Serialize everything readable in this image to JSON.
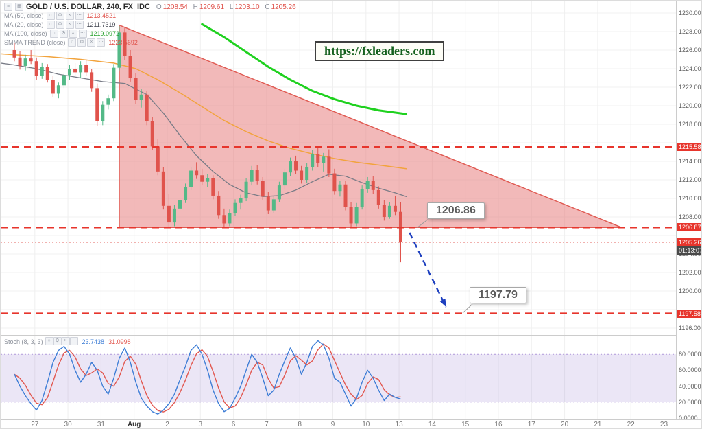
{
  "colors": {
    "up": "#53b987",
    "down": "#e0534c",
    "level_line": "#e7352c",
    "current_price_line": "#e0534c",
    "triangle_fill": "rgba(229,115,115,0.50)",
    "triangle_stroke": "#e05a52",
    "green_line": "#1fd11f",
    "orange_line": "#f2a33c",
    "gray_line": "#787b86",
    "arrow": "#1d3fbf",
    "band_fill": "rgba(103,58,183,0.13)",
    "band_edge": "#9575cd",
    "k_line": "#3d7dd6",
    "d_line": "#e2574f",
    "grid": "#f0f0f0",
    "axis_text": "#5c5c5c",
    "badge_red": "#e7352c",
    "badge_dark": "#4a4a4a"
  },
  "header": {
    "symbol_title": "GOLD / U.S. DOLLAR, 240, FX_IDC",
    "ohlc": {
      "o_label": "O",
      "o_value": "1208.54",
      "h_label": "H",
      "h_value": "1209.61",
      "l_label": "L",
      "l_value": "1203.10",
      "c_label": "C",
      "c_value": "1205.26"
    }
  },
  "legend": {
    "button_glyphs": [
      "○",
      "⚙",
      "×",
      "⋯"
    ],
    "button_names": [
      "visibility-icon",
      "settings-icon",
      "delete-icon",
      "more-icon"
    ],
    "rows": [
      {
        "label": "MA (50, close)",
        "value": "1213.4521",
        "color": "#e0534c"
      },
      {
        "label": "MA (20, close)",
        "value": "1211.7319",
        "color": "#434651"
      },
      {
        "label": "MA (100, close)",
        "value": "1219.0972",
        "color": "#27a22e"
      },
      {
        "label": "SMMA TREND (close)",
        "value": "1223.5692",
        "color": "#e0534c"
      }
    ]
  },
  "watermark": {
    "text": "https://fxleaders.com"
  },
  "callouts": [
    {
      "text": "1206.86"
    },
    {
      "text": "1197.79"
    }
  ],
  "price_axis": {
    "labels": [
      "1230.00",
      "1228.00",
      "1226.00",
      "1224.00",
      "1222.00",
      "1220.00",
      "1218.00",
      "1214.00",
      "1212.00",
      "1210.00",
      "1208.00",
      "1204.00",
      "1202.00",
      "1200.00",
      "1196.00"
    ],
    "badges": [
      {
        "text": "1215.58",
        "value": 1215.58,
        "type": "level"
      },
      {
        "text": "1206.87",
        "value": 1206.87,
        "type": "level"
      },
      {
        "text": "1205.26",
        "value": 1205.26,
        "type": "current"
      },
      {
        "text": "01:13:07",
        "value": 1204.4,
        "type": "countdown"
      },
      {
        "text": "1197.58",
        "value": 1197.58,
        "type": "level"
      }
    ],
    "stoch_labels": [
      {
        "text": "80.0000",
        "value": 80
      },
      {
        "text": "60.0000",
        "value": 60
      },
      {
        "text": "40.0000",
        "value": 40
      },
      {
        "text": "20.0000",
        "value": 20
      },
      {
        "text": "0.0000",
        "value": 0
      }
    ]
  },
  "time_axis": {
    "labels": [
      {
        "text": "27",
        "bar": 3.7
      },
      {
        "text": "30",
        "bar": 9.7
      },
      {
        "text": "31",
        "bar": 15.7
      },
      {
        "text": "Aug",
        "bar": 21.7,
        "bold": true
      },
      {
        "text": "2",
        "bar": 27.7
      },
      {
        "text": "3",
        "bar": 33.7
      },
      {
        "text": "6",
        "bar": 39.7
      },
      {
        "text": "7",
        "bar": 45.7
      },
      {
        "text": "8",
        "bar": 51.7
      },
      {
        "text": "9",
        "bar": 57.7
      },
      {
        "text": "10",
        "bar": 63.7
      },
      {
        "text": "13",
        "bar": 69.7
      },
      {
        "text": "14",
        "bar": 75.7
      },
      {
        "text": "15",
        "bar": 81.7
      },
      {
        "text": "16",
        "bar": 87.7
      },
      {
        "text": "17",
        "bar": 93.7
      },
      {
        "text": "20",
        "bar": 99.7
      },
      {
        "text": "21",
        "bar": 105.7
      },
      {
        "text": "22",
        "bar": 111.7
      },
      {
        "text": "23",
        "bar": 117.7
      }
    ]
  },
  "stoch": {
    "label": "Stoch (8, 3, 3)",
    "k_value": "23.7438",
    "d_value": "31.0998"
  },
  "chart_data": [
    {
      "type": "candlestick",
      "title": "GOLD / U.S. DOLLAR, 240, FX_IDC",
      "ylim": [
        1196.2,
        1230.8
      ],
      "levels": [
        1215.58,
        1206.87,
        1197.58
      ],
      "current_price": 1205.26,
      "ohlc_current": {
        "open": 1208.54,
        "high": 1209.61,
        "low": 1203.1,
        "close": 1205.26
      },
      "candles": [
        [
          1226.0,
          1226.8,
          1224.8,
          1225.2
        ],
        [
          1225.2,
          1225.9,
          1223.9,
          1224.3
        ],
        [
          1224.3,
          1225.5,
          1223.8,
          1225.1
        ],
        [
          1225.1,
          1226.0,
          1224.5,
          1224.8
        ],
        [
          1224.8,
          1225.2,
          1222.8,
          1223.2
        ],
        [
          1223.2,
          1224.6,
          1222.9,
          1224.2
        ],
        [
          1224.2,
          1224.5,
          1222.5,
          1222.8
        ],
        [
          1222.8,
          1223.2,
          1220.9,
          1221.3
        ],
        [
          1221.3,
          1222.5,
          1220.8,
          1222.2
        ],
        [
          1222.2,
          1223.6,
          1221.9,
          1223.3
        ],
        [
          1223.3,
          1224.4,
          1222.8,
          1224.0
        ],
        [
          1224.0,
          1224.6,
          1223.2,
          1223.6
        ],
        [
          1223.6,
          1224.8,
          1223.0,
          1224.4
        ],
        [
          1224.4,
          1225.0,
          1223.2,
          1223.6
        ],
        [
          1223.6,
          1224.0,
          1221.5,
          1221.9
        ],
        [
          1221.9,
          1222.4,
          1217.8,
          1218.3
        ],
        [
          1218.3,
          1220.5,
          1217.9,
          1220.1
        ],
        [
          1220.1,
          1221.2,
          1219.6,
          1220.8
        ],
        [
          1220.8,
          1224.5,
          1220.5,
          1224.1
        ],
        [
          1224.1,
          1228.6,
          1223.8,
          1227.9
        ],
        [
          1227.9,
          1228.4,
          1224.9,
          1225.4
        ],
        [
          1225.4,
          1226.0,
          1222.6,
          1223.0
        ],
        [
          1223.0,
          1223.5,
          1220.2,
          1220.6
        ],
        [
          1220.6,
          1221.8,
          1219.8,
          1221.2
        ],
        [
          1221.2,
          1221.6,
          1217.9,
          1218.3
        ],
        [
          1218.3,
          1218.8,
          1215.2,
          1215.6
        ],
        [
          1215.6,
          1216.4,
          1212.5,
          1212.9
        ],
        [
          1212.9,
          1213.4,
          1208.8,
          1209.2
        ],
        [
          1209.2,
          1210.5,
          1206.9,
          1207.4
        ],
        [
          1207.4,
          1209.3,
          1207.0,
          1208.9
        ],
        [
          1208.9,
          1210.2,
          1208.4,
          1209.8
        ],
        [
          1209.8,
          1211.6,
          1209.5,
          1211.2
        ],
        [
          1211.2,
          1213.4,
          1210.9,
          1213.0
        ],
        [
          1213.0,
          1213.9,
          1212.1,
          1212.5
        ],
        [
          1212.5,
          1213.2,
          1211.4,
          1211.8
        ],
        [
          1211.8,
          1212.6,
          1211.2,
          1212.2
        ],
        [
          1212.2,
          1212.5,
          1209.9,
          1210.3
        ],
        [
          1210.3,
          1210.8,
          1207.8,
          1208.2
        ],
        [
          1208.2,
          1208.9,
          1206.9,
          1207.3
        ],
        [
          1207.3,
          1208.8,
          1207.0,
          1208.4
        ],
        [
          1208.4,
          1209.9,
          1208.1,
          1209.5
        ],
        [
          1209.5,
          1210.4,
          1208.8,
          1210.0
        ],
        [
          1210.0,
          1212.2,
          1209.7,
          1211.8
        ],
        [
          1211.8,
          1213.5,
          1211.4,
          1213.1
        ],
        [
          1213.1,
          1213.6,
          1211.5,
          1211.9
        ],
        [
          1211.9,
          1212.3,
          1209.8,
          1210.2
        ],
        [
          1210.2,
          1210.7,
          1208.3,
          1208.7
        ],
        [
          1208.7,
          1210.3,
          1208.4,
          1209.9
        ],
        [
          1209.9,
          1211.8,
          1209.6,
          1211.4
        ],
        [
          1211.4,
          1213.2,
          1211.0,
          1212.8
        ],
        [
          1212.8,
          1214.4,
          1212.4,
          1214.0
        ],
        [
          1214.0,
          1214.6,
          1212.6,
          1213.0
        ],
        [
          1213.0,
          1213.5,
          1211.6,
          1212.0
        ],
        [
          1212.0,
          1213.8,
          1211.7,
          1213.4
        ],
        [
          1213.4,
          1215.2,
          1213.0,
          1214.8
        ],
        [
          1214.8,
          1215.5,
          1213.4,
          1213.8
        ],
        [
          1213.8,
          1214.9,
          1212.9,
          1214.5
        ],
        [
          1214.5,
          1215.3,
          1212.3,
          1212.7
        ],
        [
          1212.7,
          1213.2,
          1210.4,
          1210.8
        ],
        [
          1210.8,
          1211.9,
          1210.2,
          1211.5
        ],
        [
          1211.5,
          1211.9,
          1208.7,
          1209.1
        ],
        [
          1209.1,
          1209.6,
          1206.9,
          1207.3
        ],
        [
          1207.3,
          1209.5,
          1207.0,
          1209.1
        ],
        [
          1209.1,
          1211.4,
          1208.8,
          1211.0
        ],
        [
          1211.0,
          1212.3,
          1210.6,
          1211.9
        ],
        [
          1211.9,
          1212.4,
          1210.5,
          1210.9
        ],
        [
          1210.9,
          1211.3,
          1208.9,
          1209.3
        ],
        [
          1209.3,
          1209.8,
          1207.6,
          1208.0
        ],
        [
          1208.0,
          1209.6,
          1207.8,
          1209.2
        ],
        [
          1209.2,
          1210.3,
          1208.2,
          1208.54
        ],
        [
          1208.54,
          1209.61,
          1203.1,
          1205.26
        ]
      ],
      "overlays": {
        "green_ma": [
          [
            34,
            1228.8
          ],
          [
            38,
            1227.4
          ],
          [
            42,
            1225.8
          ],
          [
            46,
            1224.2
          ],
          [
            50,
            1222.8
          ],
          [
            54,
            1221.6
          ],
          [
            58,
            1220.7
          ],
          [
            62,
            1220.0
          ],
          [
            66,
            1219.5
          ],
          [
            71,
            1219.1
          ]
        ],
        "orange_ma": [
          [
            -2.5,
            1225.6
          ],
          [
            0,
            1225.5
          ],
          [
            6,
            1225.3
          ],
          [
            12,
            1225.0
          ],
          [
            18,
            1224.6
          ],
          [
            22,
            1224.0
          ],
          [
            26,
            1222.8
          ],
          [
            30,
            1221.4
          ],
          [
            34,
            1219.9
          ],
          [
            38,
            1218.4
          ],
          [
            42,
            1217.2
          ],
          [
            46,
            1216.2
          ],
          [
            50,
            1215.4
          ],
          [
            54,
            1214.8
          ],
          [
            58,
            1214.3
          ],
          [
            62,
            1213.9
          ],
          [
            66,
            1213.6
          ],
          [
            71,
            1213.2
          ]
        ],
        "gray_ma": [
          [
            -2.5,
            1224.6
          ],
          [
            0,
            1224.4
          ],
          [
            4,
            1224.0
          ],
          [
            8,
            1223.4
          ],
          [
            12,
            1223.0
          ],
          [
            16,
            1222.6
          ],
          [
            20,
            1222.4
          ],
          [
            24,
            1221.2
          ],
          [
            27,
            1219.2
          ],
          [
            30,
            1216.8
          ],
          [
            33,
            1214.6
          ],
          [
            36,
            1212.9
          ],
          [
            39,
            1211.5
          ],
          [
            42,
            1210.6
          ],
          [
            45,
            1210.2
          ],
          [
            48,
            1210.3
          ],
          [
            51,
            1210.9
          ],
          [
            54,
            1211.8
          ],
          [
            57,
            1212.6
          ],
          [
            60,
            1212.4
          ],
          [
            63,
            1211.7
          ],
          [
            66,
            1211.1
          ],
          [
            69,
            1210.6
          ],
          [
            71,
            1210.2
          ]
        ]
      },
      "triangle": [
        [
          19,
          1228.7
        ],
        [
          19,
          1206.87
        ],
        [
          110,
          1206.87
        ]
      ],
      "arrow": {
        "from": [
          71.6,
          1206.3
        ],
        "to": [
          78.2,
          1198.3
        ]
      },
      "projection_labels": [
        "1206.86",
        "1197.79"
      ]
    },
    {
      "type": "line",
      "name": "Stochastic (8, 3, 3)",
      "ylim": [
        0,
        100
      ],
      "band": [
        20,
        80
      ],
      "k": [
        55,
        40,
        28,
        18,
        10,
        22,
        45,
        70,
        85,
        90,
        80,
        60,
        45,
        55,
        70,
        60,
        40,
        30,
        50,
        75,
        88,
        70,
        45,
        25,
        15,
        8,
        5,
        10,
        18,
        30,
        48,
        65,
        85,
        92,
        80,
        60,
        35,
        18,
        8,
        12,
        25,
        40,
        60,
        80,
        70,
        50,
        28,
        35,
        55,
        72,
        88,
        75,
        55,
        70,
        90,
        97,
        92,
        75,
        50,
        45,
        30,
        15,
        25,
        45,
        60,
        50,
        35,
        22,
        30,
        26,
        23.74
      ],
      "k_current": 23.7438,
      "d_current": 31.0998
    }
  ]
}
